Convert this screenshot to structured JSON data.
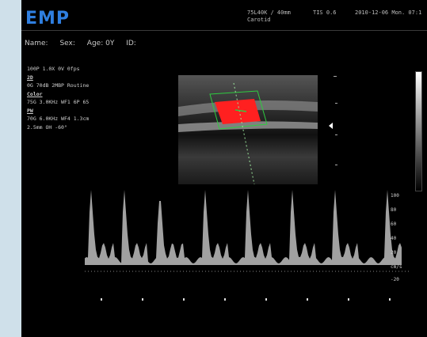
{
  "header": {
    "logo": "EMP",
    "probe": "75L40K / 40mm",
    "preset": "Carotid",
    "tis": "TIS  0.6",
    "datetime": "2010-12-06 Mon. 07:1"
  },
  "patient": {
    "name": "Name:",
    "sex": "Sex:",
    "age": "Age: 0Y",
    "id": "ID:"
  },
  "params": {
    "line0": "100P 1.0X  0V   0fps",
    "h2d": "2D",
    "l2d": "0G 70dB 2MBP Routine",
    "hcolor": "Color",
    "lcolor": "75G 3.0KHz WF1 6P 65",
    "hpw": "PW",
    "lpw1": "70G 6.0KHz WF4 1.3cm",
    "lpw2": "2.5mm OH  -60°"
  },
  "velocity_scale": {
    "labels": [
      "100",
      "80",
      "60",
      "40",
      "20",
      "cm/s",
      "-20"
    ]
  },
  "colors": {
    "background": "#000000",
    "color_box": "#ff2020",
    "roi": "#2ecc40",
    "logo": "#2f7fe0"
  }
}
